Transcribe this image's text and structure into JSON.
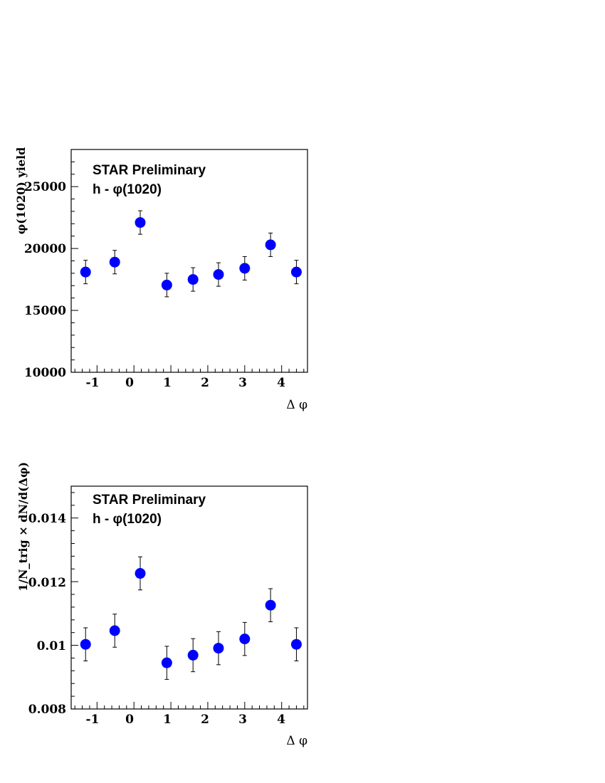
{
  "colors": {
    "marker": "#0000ff",
    "axis": "#000000"
  },
  "chart_data": [
    {
      "type": "scatter",
      "title": "",
      "annotations": [
        "STAR Preliminary",
        "h - φ(1020)"
      ],
      "xlabel": "Δ φ",
      "ylabel": "φ(1020) yield",
      "xlim": [
        -1.7,
        4.7
      ],
      "ylim": [
        10000,
        28000
      ],
      "xticks": [
        -1,
        0,
        1,
        2,
        3,
        4
      ],
      "xtick_labels": [
        "-1",
        "0",
        "1",
        "2",
        "3",
        "4"
      ],
      "yticks": [
        10000,
        15000,
        20000,
        25000
      ],
      "ytick_labels": [
        "10000",
        "15000",
        "20000",
        "25000"
      ],
      "x": [
        -1.31,
        -0.52,
        0.17,
        0.89,
        1.6,
        2.29,
        3.0,
        3.7,
        4.4
      ],
      "y": [
        18100,
        18900,
        22100,
        17050,
        17500,
        17900,
        18400,
        20300,
        18100
      ],
      "yerr": [
        950,
        950,
        950,
        950,
        950,
        950,
        950,
        950,
        950
      ],
      "grid": false,
      "legend": "none"
    },
    {
      "type": "scatter",
      "title": "",
      "annotations": [
        "STAR Preliminary",
        "h - φ(1020)"
      ],
      "xlabel": "Δ φ",
      "ylabel": "1/N_trig × dN/d(Δφ)",
      "xlim": [
        -1.7,
        4.7
      ],
      "ylim": [
        0.008,
        0.015
      ],
      "xticks": [
        -1,
        0,
        1,
        2,
        3,
        4
      ],
      "xtick_labels": [
        "-1",
        "0",
        "1",
        "2",
        "3",
        "4"
      ],
      "yticks": [
        0.008,
        0.01,
        0.012,
        0.014
      ],
      "ytick_labels": [
        "0.008",
        "0.01",
        "0.012",
        "0.014"
      ],
      "x": [
        -1.31,
        -0.52,
        0.17,
        0.89,
        1.6,
        2.29,
        3.0,
        3.7,
        4.4
      ],
      "y": [
        0.01003,
        0.01046,
        0.01226,
        0.00945,
        0.00969,
        0.00991,
        0.0102,
        0.01126,
        0.01003
      ],
      "yerr": [
        0.00052,
        0.00052,
        0.00052,
        0.00052,
        0.00052,
        0.00052,
        0.00052,
        0.00052,
        0.00052
      ],
      "grid": false,
      "legend": "none"
    }
  ]
}
